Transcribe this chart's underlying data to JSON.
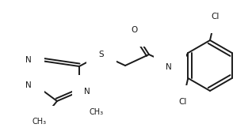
{
  "background_color": "#ffffff",
  "line_color": "#1a1a1a",
  "line_width": 1.4,
  "font_size": 7.5,
  "figsize": [
    3.18,
    1.76
  ],
  "dpi": 100,
  "xlim": [
    0,
    318
  ],
  "ylim": [
    0,
    176
  ]
}
